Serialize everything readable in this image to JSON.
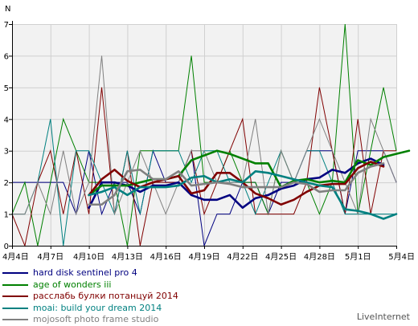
{
  "chart_data": {
    "type": "line",
    "ylabel": "N",
    "ylim": [
      0,
      7
    ],
    "yticks": [
      "0",
      "1",
      "2",
      "3",
      "4",
      "5",
      "6",
      "7"
    ],
    "xlim": [
      0,
      30
    ],
    "xticks": [
      {
        "x": 0,
        "label": "4月4日"
      },
      {
        "x": 3,
        "label": "4月7日"
      },
      {
        "x": 6,
        "label": "4月10日"
      },
      {
        "x": 9,
        "label": "4月13日"
      },
      {
        "x": 12,
        "label": "4月16日"
      },
      {
        "x": 15,
        "label": "4月19日"
      },
      {
        "x": 18,
        "label": "4月22日"
      },
      {
        "x": 21,
        "label": "4月25日"
      },
      {
        "x": 24,
        "label": "4月28日"
      },
      {
        "x": 27,
        "label": "5月1日"
      },
      {
        "x": 30,
        "label": "5月4日"
      }
    ],
    "grid": true,
    "legend_position": "bottom-left",
    "series": [
      {
        "name": "hard disk sentinel pro 4",
        "color": "#000080",
        "raw": [
          2,
          2,
          2,
          2,
          2,
          1,
          3,
          1,
          2,
          2,
          1,
          3,
          2,
          2,
          3,
          0,
          1,
          1,
          2,
          2,
          1,
          2,
          2,
          3,
          3,
          3,
          1,
          3,
          3,
          3,
          2
        ],
        "avg_start": 6,
        "avg": [
          1.2,
          2.0,
          2.0,
          1.9,
          1.7,
          1.9,
          1.9,
          2.0,
          1.6,
          1.45,
          1.45,
          1.6,
          1.2,
          1.5,
          1.6,
          1.8,
          1.9,
          2.1,
          2.15,
          2.4,
          2.3,
          2.6,
          2.75,
          2.55
        ]
      },
      {
        "name": "age of wonders iii",
        "color": "#008000",
        "raw": [
          1,
          2,
          0,
          2,
          4,
          3,
          2,
          2,
          2,
          0,
          3,
          3,
          3,
          3,
          6,
          2,
          2,
          3,
          2,
          2,
          1,
          3,
          2,
          2,
          1,
          2,
          7,
          1,
          3,
          5,
          3
        ],
        "avg_start": 6,
        "avg": [
          1.6,
          1.9,
          1.9,
          1.9,
          2.0,
          2.1,
          2.1,
          2.2,
          2.7,
          2.85,
          3.0,
          2.9,
          2.75,
          2.6,
          2.6,
          1.85,
          2.05,
          2.1,
          2.0,
          2.05,
          2.0,
          2.7,
          2.55,
          2.8,
          2.9,
          3.0
        ]
      },
      {
        "name": "расслабь булки потанцуй 2014",
        "color": "#800000",
        "raw": [
          1,
          0,
          2,
          3,
          1,
          3,
          1,
          5,
          1,
          3,
          0,
          2,
          2,
          2,
          3,
          1,
          2,
          3,
          4,
          1,
          1,
          1,
          1,
          2,
          5,
          3,
          1,
          4,
          1,
          3,
          3
        ],
        "avg_start": 6,
        "avg": [
          1.6,
          2.1,
          2.4,
          2.05,
          1.85,
          2.0,
          2.1,
          2.2,
          1.65,
          1.75,
          2.3,
          2.3,
          2.0,
          1.65,
          1.5,
          1.3,
          1.45,
          1.7,
          1.9,
          1.95,
          1.95,
          2.45,
          2.65,
          2.5
        ]
      },
      {
        "name": "moai: build your dream 2014",
        "color": "#008080",
        "raw": [
          1,
          1,
          2,
          4,
          0,
          3,
          3,
          2,
          1,
          3,
          1,
          3,
          3,
          3,
          2,
          3,
          3,
          2,
          2,
          1,
          2,
          3,
          2,
          3,
          3,
          2,
          1,
          1,
          1,
          1,
          1
        ],
        "avg_start": 6,
        "avg": [
          1.6,
          1.7,
          1.85,
          1.6,
          1.85,
          1.85,
          1.85,
          1.9,
          2.15,
          2.2,
          2.0,
          2.1,
          2.0,
          2.35,
          2.3,
          2.2,
          2.1,
          2.0,
          1.9,
          1.85,
          1.15,
          1.1,
          1.0,
          0.85,
          1.0
        ]
      },
      {
        "name": "mojosoft photo frame studio",
        "color": "#808080",
        "raw": [
          1,
          1,
          2,
          1,
          3,
          1,
          2,
          6,
          1,
          2,
          3,
          2,
          1,
          2,
          3,
          3,
          2,
          2,
          2,
          4,
          1,
          3,
          2,
          3,
          4,
          3,
          2,
          1,
          4,
          3,
          2
        ],
        "avg_start": 6,
        "avg": [
          1.3,
          1.3,
          1.6,
          2.35,
          2.4,
          2.1,
          2.1,
          2.35,
          1.9,
          1.95,
          2.0,
          1.95,
          1.85,
          1.85,
          1.85,
          1.85,
          2.0,
          1.95,
          1.7,
          1.75,
          1.75,
          2.3,
          2.5,
          2.6
        ]
      }
    ]
  },
  "branding": "LiveInternet"
}
